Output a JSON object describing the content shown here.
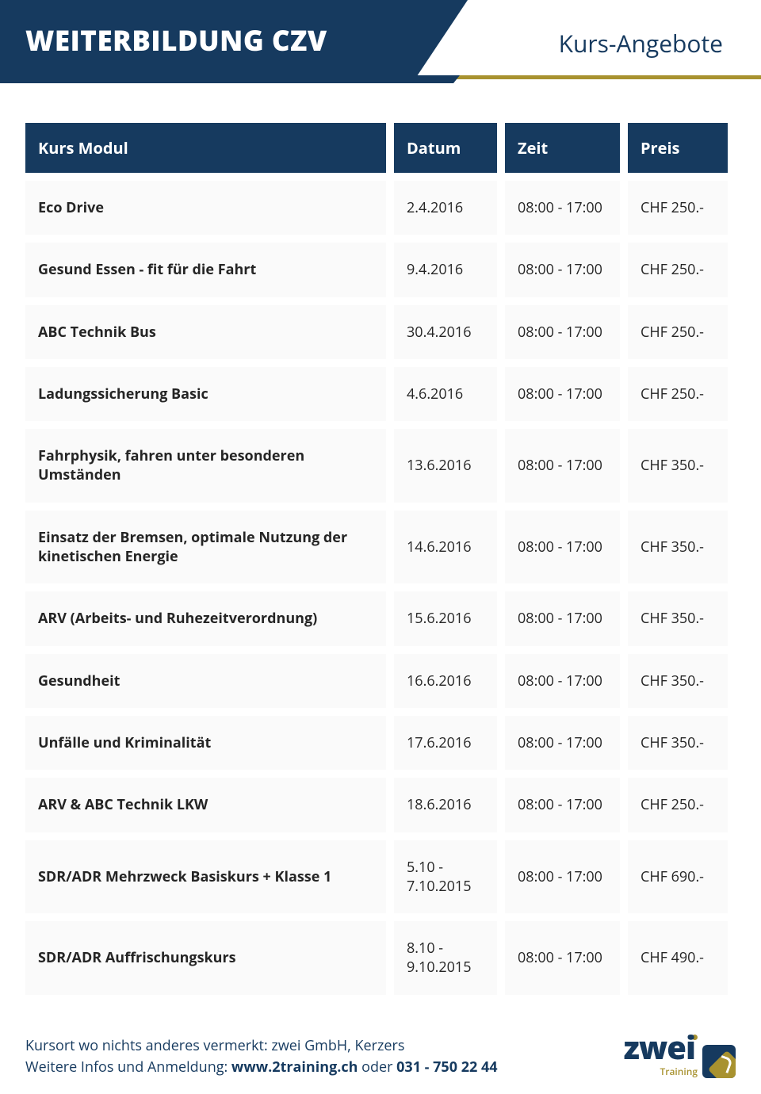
{
  "header": {
    "title": "WEITERBILDUNG CZV",
    "subtitle": "Kurs-Angebote"
  },
  "colors": {
    "primary": "#163a5f",
    "accent": "#a8922f",
    "row_bg": "#fafafa",
    "text": "#252525"
  },
  "table": {
    "columns": [
      "Kurs Modul",
      "Datum",
      "Zeit",
      "Preis"
    ],
    "rows": [
      {
        "module": "Eco Drive",
        "date": "2.4.2016",
        "time": "08:00 - 17:00",
        "price": "CHF 250.-"
      },
      {
        "module": "Gesund Essen - fit für die Fahrt",
        "date": "9.4.2016",
        "time": "08:00 - 17:00",
        "price": "CHF 250.-"
      },
      {
        "module": "ABC Technik Bus",
        "date": "30.4.2016",
        "time": "08:00 - 17:00",
        "price": "CHF 250.-"
      },
      {
        "module": "Ladungssicherung Basic",
        "date": "4.6.2016",
        "time": "08:00 - 17:00",
        "price": "CHF 250.-"
      },
      {
        "module": "Fahrphysik, fahren unter besonderen Umständen",
        "date": "13.6.2016",
        "time": "08:00 - 17:00",
        "price": "CHF 350.-"
      },
      {
        "module": "Einsatz der Bremsen, optimale Nutzung der kinetischen Energie",
        "date": "14.6.2016",
        "time": "08:00 - 17:00",
        "price": "CHF 350.-"
      },
      {
        "module": "ARV (Arbeits- und Ruhezeitverordnung)",
        "date": "15.6.2016",
        "time": "08:00 - 17:00",
        "price": "CHF 350.-"
      },
      {
        "module": "Gesundheit",
        "date": "16.6.2016",
        "time": "08:00 - 17:00",
        "price": "CHF 350.-"
      },
      {
        "module": "Unfälle und Kriminalität",
        "date": "17.6.2016",
        "time": "08:00 - 17:00",
        "price": "CHF 350.-"
      },
      {
        "module": "ARV & ABC Technik LKW",
        "date": "18.6.2016",
        "time": "08:00 - 17:00",
        "price": "CHF 250.-"
      },
      {
        "module": "SDR/ADR Mehrzweck  Basiskurs + Klasse 1",
        "date": "5.10 - 7.10.2015",
        "time": "08:00 - 17:00",
        "price": "CHF 690.-"
      },
      {
        "module": "SDR/ADR Auffrischungskurs",
        "date": "8.10 - 9.10.2015",
        "time": "08:00 - 17:00",
        "price": "CHF 490.-"
      }
    ]
  },
  "footer": {
    "line1": "Kursort wo nichts anderes vermerkt: zwei GmbH, Kerzers",
    "line2_pre": "Weitere Infos und Anmeldung: ",
    "url": "www.2training.ch",
    "line2_mid": " oder ",
    "phone": "031 - 750 22 44"
  },
  "logo": {
    "text": "zwei",
    "sub": "Training"
  }
}
